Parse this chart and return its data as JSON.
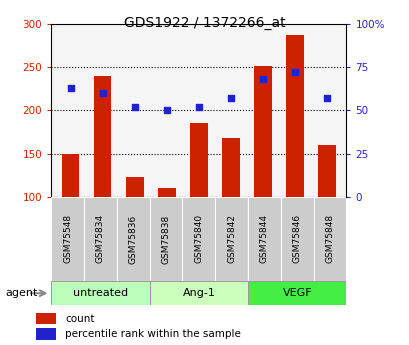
{
  "title": "GDS1922 / 1372266_at",
  "categories": [
    "GSM75548",
    "GSM75834",
    "GSM75836",
    "GSM75838",
    "GSM75840",
    "GSM75842",
    "GSM75844",
    "GSM75846",
    "GSM75848"
  ],
  "count_values": [
    150,
    240,
    123,
    110,
    185,
    168,
    252,
    287,
    160
  ],
  "percentile_values": [
    63,
    60,
    52,
    50,
    52,
    57,
    68,
    72,
    57
  ],
  "groups": [
    {
      "label": "untreated",
      "indices": [
        0,
        1,
        2
      ],
      "color": "#bbffbb"
    },
    {
      "label": "Ang-1",
      "indices": [
        3,
        4,
        5
      ],
      "color": "#ccffbb"
    },
    {
      "label": "VEGF",
      "indices": [
        6,
        7,
        8
      ],
      "color": "#44ee44"
    }
  ],
  "ylim_left": [
    100,
    300
  ],
  "ylim_right": [
    0,
    100
  ],
  "yticks_left": [
    100,
    150,
    200,
    250,
    300
  ],
  "ytick_labels_left": [
    "100",
    "150",
    "200",
    "250",
    "300"
  ],
  "yticks_right": [
    0,
    25,
    50,
    75,
    100
  ],
  "ytick_labels_right": [
    "0",
    "25",
    "50",
    "75",
    "100%"
  ],
  "bar_color": "#cc2200",
  "dot_color": "#2222cc",
  "grid_lines": [
    150,
    200,
    250
  ],
  "bar_width": 0.55,
  "agent_label": "agent",
  "legend_count_label": "count",
  "legend_percentile_label": "percentile rank within the sample",
  "xlabel_color": "#333333",
  "xlabel_bg": "#cccccc",
  "plot_bg": "#f5f5f5"
}
